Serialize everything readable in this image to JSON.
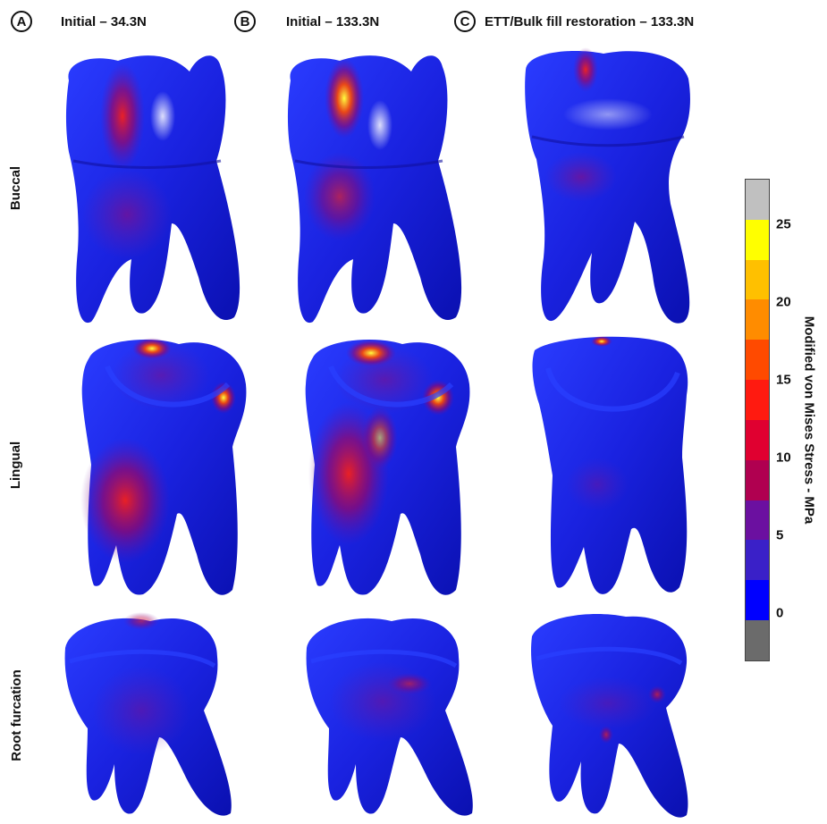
{
  "columns": [
    {
      "badge": "A",
      "title": "Initial – 34.3N"
    },
    {
      "badge": "B",
      "title": "Initial – 133.3N"
    },
    {
      "badge": "C",
      "title": "ETT/Bulk fill restoration – 133.3N"
    }
  ],
  "rows": [
    {
      "label": "Buccal"
    },
    {
      "label": "Lingual"
    },
    {
      "label": "Root furcation"
    }
  ],
  "colorbar": {
    "title": "Modified von Mises Stress - MPa",
    "ticks": [
      "25",
      "20",
      "15",
      "10",
      "5",
      "0"
    ],
    "segments": [
      "#c0c0c0",
      "#ffff00",
      "#ffc000",
      "#ff8c00",
      "#ff4a00",
      "#ff1a10",
      "#e00030",
      "#b00050",
      "#6b10a0",
      "#3a20c8",
      "#0000ff",
      "#6b6b6b"
    ]
  }
}
